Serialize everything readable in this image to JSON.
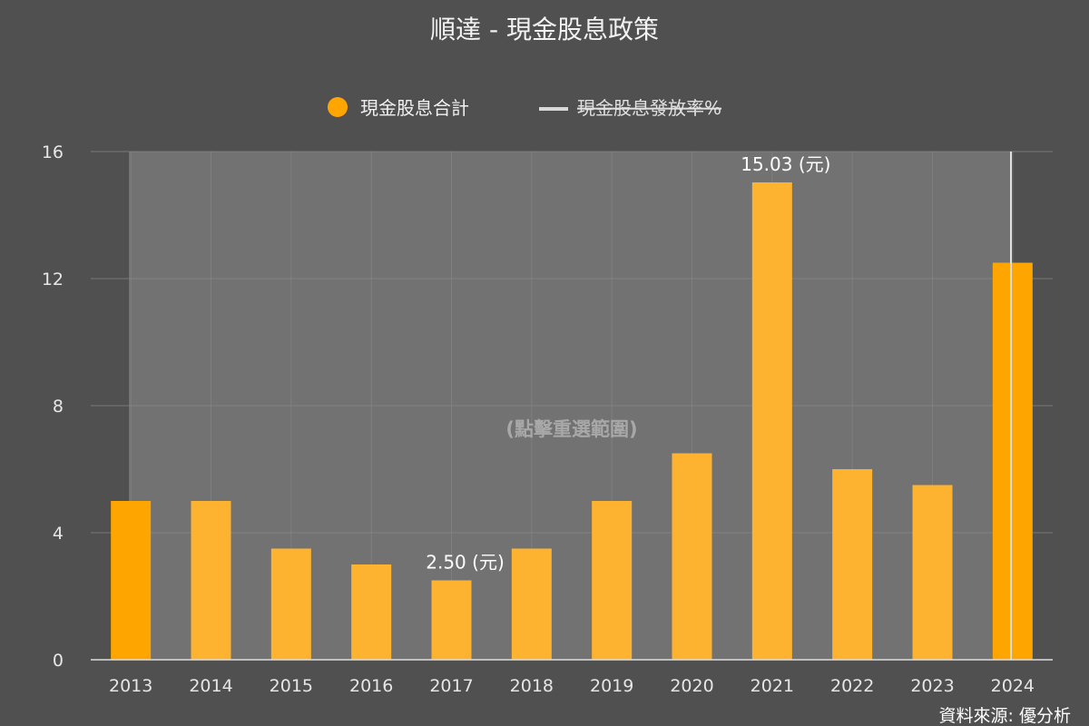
{
  "chart_data": {
    "type": "bar",
    "title": "順達 - 現金股息政策",
    "categories": [
      "2013",
      "2014",
      "2015",
      "2016",
      "2017",
      "2018",
      "2019",
      "2020",
      "2021",
      "2022",
      "2023",
      "2024"
    ],
    "series": [
      {
        "name": "現金股息合計",
        "values": [
          5.0,
          5.0,
          3.5,
          3.0,
          2.5,
          3.5,
          5.0,
          6.5,
          15.03,
          6.0,
          5.5,
          12.5
        ],
        "color": "#FFA500"
      },
      {
        "name": "現金股息發放率%",
        "hidden": true,
        "color": "#d9d9d9"
      }
    ],
    "ylim": [
      0,
      16
    ],
    "yticks": [
      "0",
      "4",
      "8",
      "12",
      "16"
    ],
    "data_labels": [
      {
        "category": "2017",
        "text": "2.50 (元)"
      },
      {
        "category": "2021",
        "text": "15.03 (元)"
      }
    ],
    "highlighted_categories": [
      "2013",
      "2024"
    ],
    "grid": true,
    "legend_position": "top-center",
    "selection_hint": "(點擊重選範圍)",
    "selection_range": [
      "2013",
      "2024"
    ]
  },
  "source_text": "資料來源: 優分析",
  "colors": {
    "background": "#505050",
    "plot_selected": "#727272",
    "bar": "#FDB32F",
    "bar_highlight": "#FFA500",
    "grid": "#8a8a8a"
  }
}
